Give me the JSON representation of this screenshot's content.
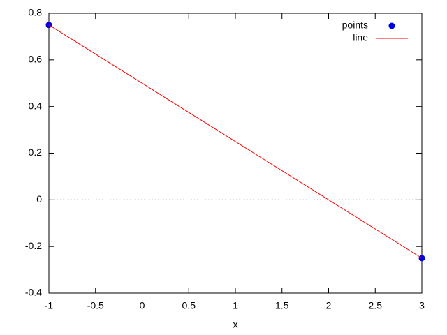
{
  "chart_data": {
    "type": "scatter",
    "xlabel": "x",
    "x": [
      -1,
      3
    ],
    "series": [
      {
        "name": "points",
        "style": "points",
        "color": "#0000e0",
        "values": [
          0.75,
          -0.25
        ]
      },
      {
        "name": "line",
        "style": "lines",
        "color": "#ff0000",
        "values": [
          0.75,
          -0.25
        ]
      }
    ],
    "xlim": [
      -1,
      3
    ],
    "xticks": [
      -1,
      -0.5,
      0,
      0.5,
      1,
      1.5,
      2,
      2.5,
      3
    ],
    "ylim": [
      -0.4,
      0.8
    ],
    "yticks": [
      -0.4,
      -0.2,
      0,
      0.2,
      0.4,
      0.6,
      0.8
    ],
    "zeroaxis": true,
    "legend": "top-right"
  }
}
